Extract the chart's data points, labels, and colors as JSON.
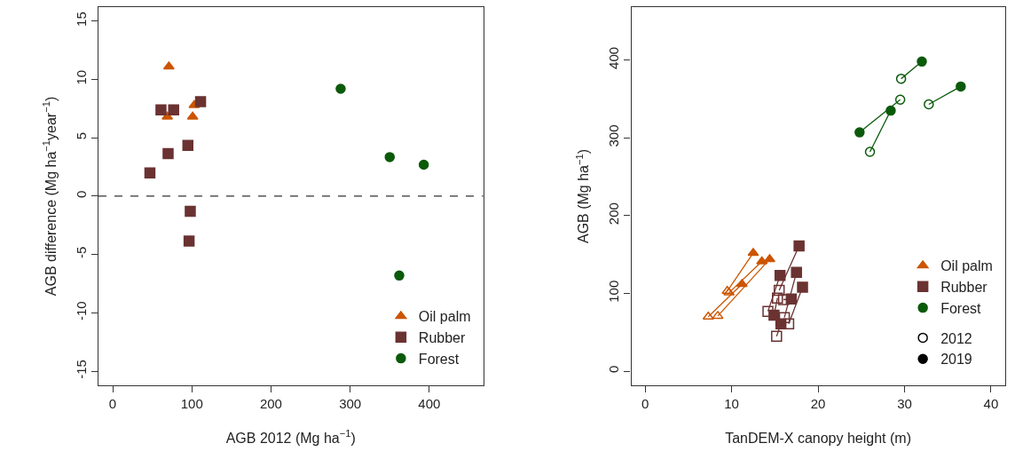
{
  "chart_data": [
    {
      "type": "scatter",
      "xlabel": "AGB 2012 (Mg ha$^{−1}$)",
      "ylabel": "AGB difference (Mg ha$^{−1}$year$^{−1}$)",
      "xlim": [
        -18,
        468
      ],
      "xticks": [
        0,
        100,
        200,
        300,
        400
      ],
      "ylim": [
        -16.2,
        16.2
      ],
      "yticks": [
        -15,
        -10,
        -5,
        0,
        5,
        10,
        15
      ],
      "legend": "bottom right",
      "ref_lines": [
        {
          "axis": "y",
          "value": 0,
          "line_style": "dashed",
          "color": "#333333"
        }
      ],
      "series": [
        {
          "name": "Oil palm",
          "color": "#cc5500",
          "marker": "triangle",
          "x": [
            71,
            103,
            69,
            101
          ],
          "values": [
            11.1,
            7.8,
            6.8,
            6.8
          ]
        },
        {
          "name": "Rubber",
          "color": "#6b3232",
          "marker": "square",
          "x": [
            111,
            61,
            77,
            95,
            70,
            47,
            98,
            96.5
          ],
          "values": [
            8.1,
            7.4,
            7.4,
            4.35,
            3.65,
            2.0,
            -1.3,
            -3.85
          ]
        },
        {
          "name": "Forest",
          "color": "#0a5a0a",
          "marker": "circle",
          "x": [
            288,
            350,
            393,
            362
          ],
          "values": [
            9.2,
            3.35,
            2.7,
            -6.8
          ]
        }
      ]
    },
    {
      "type": "line",
      "xlabel": "TanDEM-X canopy height (m)",
      "ylabel": "AGB (Mg ha$^{−1}$)",
      "xlim": [
        -1.6,
        41.6
      ],
      "xticks": [
        0,
        10,
        20,
        30,
        40
      ],
      "ylim": [
        -18,
        468
      ],
      "yticks": [
        0,
        100,
        200,
        300,
        400
      ],
      "legend": "bottom right",
      "series": [
        {
          "name": "Oil palm",
          "color": "#cc5500",
          "marker": "triangle",
          "x": [
            7.3,
            11.2
          ],
          "values": [
            70,
            112
          ]
        },
        {
          "color": "#cc5500",
          "marker": "triangle",
          "x": [
            8.4,
            14.4
          ],
          "values": [
            71,
            144
          ]
        },
        {
          "color": "#cc5500",
          "marker": "triangle",
          "x": [
            9.5,
            12.5
          ],
          "values": [
            103,
            152
          ]
        },
        {
          "color": "#cc5500",
          "marker": "triangle",
          "x": [
            9.7,
            13.5
          ],
          "values": [
            101,
            141
          ]
        },
        {
          "name": "Rubber",
          "color": "#6b3232",
          "marker": "square",
          "x": [
            15.5,
            17.8
          ],
          "values": [
            104,
            161
          ]
        },
        {
          "color": "#6b3232",
          "marker": "square",
          "x": [
            14.2,
            15.6
          ],
          "values": [
            77,
            123
          ]
        },
        {
          "color": "#6b3232",
          "marker": "square",
          "x": [
            16.1,
            17.5
          ],
          "values": [
            69,
            127
          ]
        },
        {
          "color": "#6b3232",
          "marker": "square",
          "x": [
            16.6,
            18.2
          ],
          "values": [
            61,
            108
          ]
        },
        {
          "color": "#6b3232",
          "marker": "square",
          "x": [
            15.2,
            15.7
          ],
          "values": [
            45,
            61
          ]
        },
        {
          "color": "#6b3232",
          "marker": "square",
          "x": [
            15.3,
            14.9
          ],
          "values": [
            94,
            72
          ]
        },
        {
          "color": "#6b3232",
          "marker": "square",
          "x": [
            16.0,
            16.9
          ],
          "values": [
            92,
            93
          ]
        },
        {
          "name": "Forest",
          "color": "#0a5a0a",
          "marker": "circle",
          "x": [
            29.6,
            32.0
          ],
          "values": [
            376,
            398
          ]
        },
        {
          "color": "#0a5a0a",
          "marker": "circle",
          "x": [
            32.8,
            36.5
          ],
          "values": [
            343,
            366
          ]
        },
        {
          "color": "#0a5a0a",
          "marker": "circle",
          "x": [
            29.5,
            24.8
          ],
          "values": [
            349,
            307
          ]
        },
        {
          "color": "#0a5a0a",
          "marker": "circle",
          "x": [
            26,
            28.4
          ],
          "values": [
            282,
            335
          ]
        },
        {
          "name": "2012",
          "color": "#000000",
          "marker": "circle",
          "x": [
            null
          ],
          "values": [
            null
          ]
        },
        {
          "name": "2019",
          "color": "#000000",
          "marker": "circle",
          "x": [
            null
          ],
          "values": [
            null
          ]
        }
      ]
    }
  ]
}
